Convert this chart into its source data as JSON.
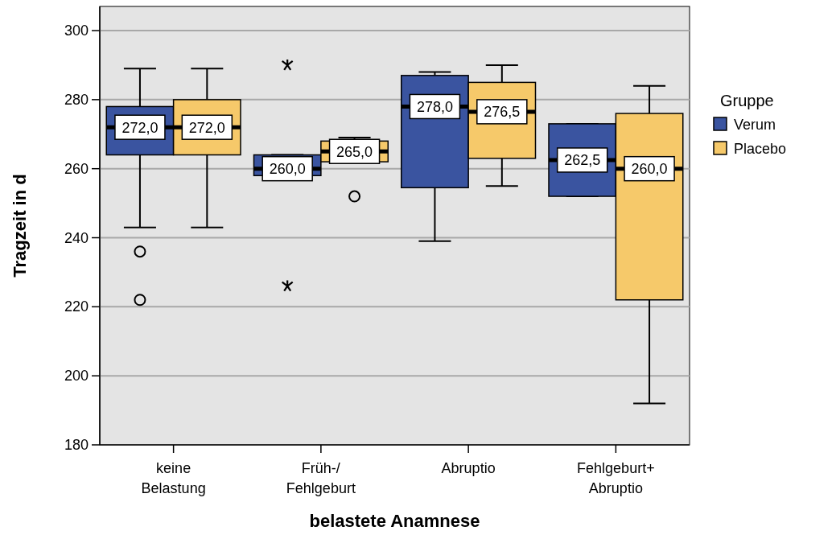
{
  "chart_data": {
    "type": "box",
    "xlabel": "belastete Anamnese",
    "ylabel": "Tragzeit in d",
    "legend_title": "Gruppe",
    "legend": "right",
    "categories": [
      "keine\nBelastung",
      "Früh-/\nFehlgeburt",
      "Abruptio",
      "Fehlgeburt+\nAbruptio"
    ],
    "ylim": [
      180,
      307
    ],
    "yticks": [
      180,
      200,
      220,
      240,
      260,
      280,
      300
    ],
    "grid": "y",
    "series": [
      {
        "name": "Verum",
        "color": "#3a54a0",
        "value_labels": [
          "272,0",
          "260,0",
          "278,0",
          "262,5"
        ],
        "boxes": [
          {
            "low": 243,
            "q1": 264,
            "median": 272,
            "q3": 278,
            "high": 289,
            "outliers": [
              236,
              222
            ]
          },
          {
            "low": 258,
            "q1": 258,
            "median": 260,
            "q3": 264,
            "high": 264,
            "outliers": [
              290,
              226
            ]
          },
          {
            "low": 239,
            "q1": 254.5,
            "median": 278,
            "q3": 287,
            "high": 288
          },
          {
            "low": 252,
            "q1": 252,
            "median": 262.5,
            "q3": 273,
            "high": 273
          }
        ]
      },
      {
        "name": "Placebo",
        "color": "#f6c96a",
        "value_labels": [
          "272,0",
          "265,0",
          "276,5",
          "260,0"
        ],
        "boxes": [
          {
            "low": 243,
            "q1": 264,
            "median": 272,
            "q3": 280,
            "high": 289
          },
          {
            "low": 262,
            "q1": 262,
            "median": 265,
            "q3": 268,
            "high": 269,
            "outliers": [
              252
            ]
          },
          {
            "low": 255,
            "q1": 263,
            "median": 276.5,
            "q3": 285,
            "high": 290
          },
          {
            "low": 192,
            "q1": 222,
            "median": 260,
            "q3": 276,
            "high": 284
          }
        ]
      }
    ]
  }
}
